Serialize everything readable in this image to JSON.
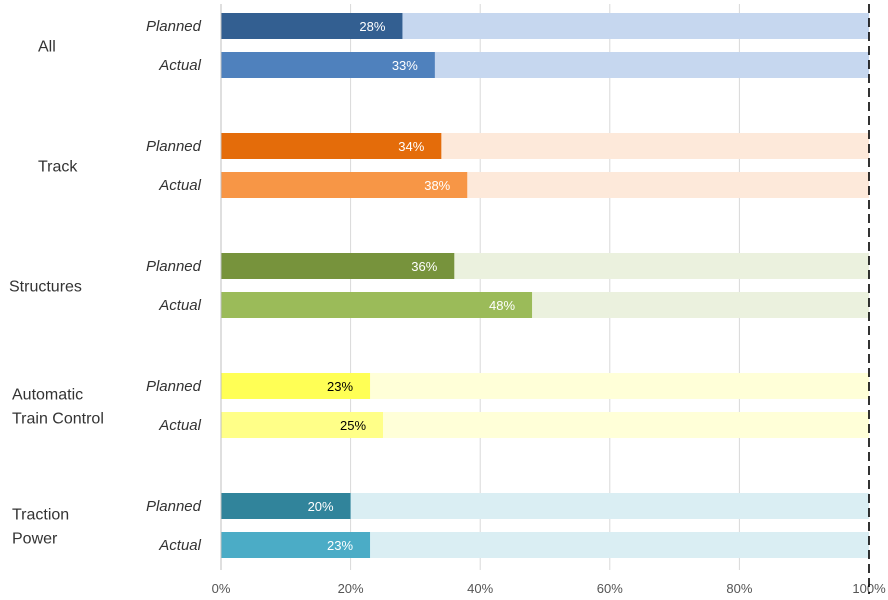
{
  "chart_data": {
    "type": "bar",
    "orientation": "horizontal",
    "xlim": [
      0,
      100
    ],
    "x_ticks": [
      "0%",
      "20%",
      "40%",
      "60%",
      "80%",
      "100%"
    ],
    "grid": true,
    "reference_line": {
      "value": 100,
      "style": "dashed"
    },
    "row_labels": [
      "Planned",
      "Actual"
    ],
    "groups": [
      {
        "name": [
          "All"
        ],
        "planned": 28,
        "actual": 33,
        "planned_label": "28%",
        "actual_label": "33%",
        "colors": {
          "planned": "#335F91",
          "actual": "#4F81BD",
          "track": "#C6D7EF",
          "planned_text": "#ffffff",
          "actual_text": "#ffffff"
        }
      },
      {
        "name": [
          "Track"
        ],
        "planned": 34,
        "actual": 38,
        "planned_label": "34%",
        "actual_label": "38%",
        "colors": {
          "planned": "#E46C0A",
          "actual": "#F79646",
          "track": "#FDE9DA",
          "planned_text": "#ffffff",
          "actual_text": "#ffffff"
        }
      },
      {
        "name": [
          "Structures"
        ],
        "planned": 36,
        "actual": 48,
        "planned_label": "36%",
        "actual_label": "48%",
        "colors": {
          "planned": "#77933C",
          "actual": "#9BBB59",
          "track": "#EBF1DE",
          "planned_text": "#ffffff",
          "actual_text": "#ffffff"
        }
      },
      {
        "name": [
          "Automatic",
          "Train Control"
        ],
        "planned": 23,
        "actual": 25,
        "planned_label": "23%",
        "actual_label": "25%",
        "colors": {
          "planned": "#FFFF55",
          "actual": "#FFFF88",
          "track": "#FFFFD8",
          "planned_text": "#000000",
          "actual_text": "#000000"
        }
      },
      {
        "name": [
          "Traction",
          "Power"
        ],
        "planned": 20,
        "actual": 23,
        "planned_label": "20%",
        "actual_label": "23%",
        "colors": {
          "planned": "#31849B",
          "actual": "#4BACC6",
          "track": "#DAEEF3",
          "planned_text": "#ffffff",
          "actual_text": "#ffffff"
        }
      }
    ]
  }
}
